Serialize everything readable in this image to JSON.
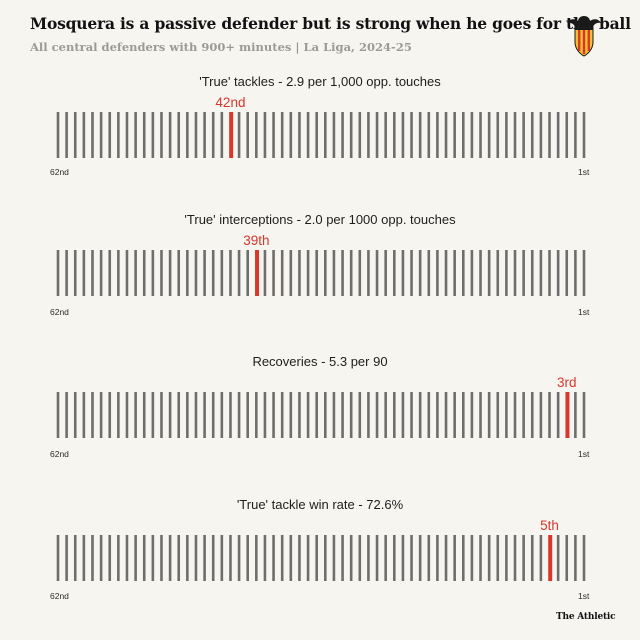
{
  "header": {
    "title": "Mosquera is a passive defender but is strong when he goes for the ball",
    "subtitle": "All central defenders with 900+ minutes | La Liga, 2024-25"
  },
  "brand": "The Athletic",
  "colors": {
    "background": "#f6f5f0",
    "bar": "#6e6e6e",
    "highlight": "#d9362c"
  },
  "crest": {
    "icon": "valencia-cf-crest-icon"
  },
  "chart_data": [
    {
      "type": "bar",
      "title": "'True' tackles - 2.9 per 1,000 opp. touches",
      "total_players": 62,
      "rank": 42,
      "rank_label": "42nd",
      "axis_left_label": "62nd",
      "axis_right_label": "1st"
    },
    {
      "type": "bar",
      "title": "'True' interceptions - 2.0 per 1000 opp. touches",
      "total_players": 62,
      "rank": 39,
      "rank_label": "39th",
      "axis_left_label": "62nd",
      "axis_right_label": "1st"
    },
    {
      "type": "bar",
      "title": "Recoveries - 5.3 per 90",
      "total_players": 62,
      "rank": 3,
      "rank_label": "3rd",
      "axis_left_label": "62nd",
      "axis_right_label": "1st"
    },
    {
      "type": "bar",
      "title": "'True' tackle win rate - 72.6%",
      "total_players": 62,
      "rank": 5,
      "rank_label": "5th",
      "axis_left_label": "62nd",
      "axis_right_label": "1st"
    }
  ]
}
